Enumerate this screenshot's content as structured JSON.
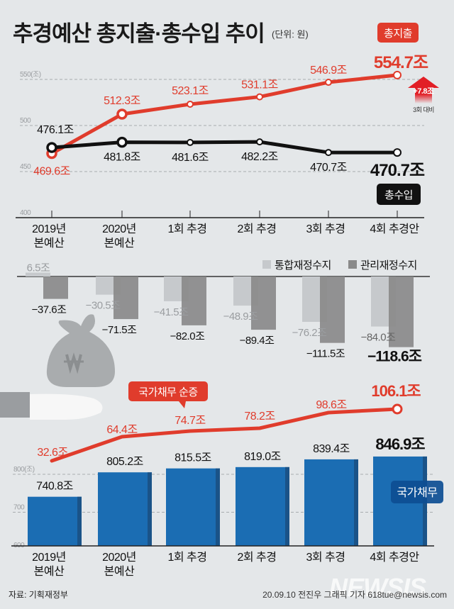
{
  "title": "추경예산 총지출·총수입 추이",
  "unit": "(단위: 원)",
  "categories": [
    "2019년\n본예산",
    "2020년\n본예산",
    "1회 추경",
    "2회 추경",
    "3회 추경",
    "4회 추경안"
  ],
  "colors": {
    "expenditure": "#e03c2c",
    "revenue": "#111111",
    "integrated_balance": "#c6c9cc",
    "managed_balance": "#8a8a8a",
    "debt_bar": "#1b6db3",
    "debt_increase": "#e03c2c",
    "background": "#e4e7e9"
  },
  "top_chart": {
    "y_axis_label": "550(조)",
    "y_ticks": [
      "550(조)",
      "500",
      "450",
      "400"
    ],
    "expenditure_badge": "총지출",
    "revenue_badge": "총수입",
    "expenditure_labels": [
      "469.6조",
      "512.3조",
      "523.1조",
      "531.1조",
      "546.9조",
      "554.7조"
    ],
    "revenue_labels": [
      "476.1조",
      "481.8조",
      "481.6조",
      "482.2조",
      "470.7조",
      "470.7조"
    ],
    "arrow_label": "+7.8조",
    "arrow_sub": "3회 대비"
  },
  "balance_chart": {
    "legend": [
      "통합재정수지",
      "관리재정수지"
    ],
    "integrated_labels": [
      "6.5조",
      "−30.5조",
      "−41.5조",
      "−48.9조",
      "−76.2조",
      "−84.0조"
    ],
    "managed_labels": [
      "−37.6조",
      "−71.5조",
      "−82.0조",
      "−89.4조",
      "−111.5조",
      "−118.6조"
    ]
  },
  "debt_chart": {
    "y_ticks": [
      "800(조)",
      "700",
      "600"
    ],
    "increase_badge": "국가채무 순증",
    "increase_labels": [
      "32.6조",
      "64.4조",
      "74.7조",
      "78.2조",
      "98.6조",
      "106.1조"
    ],
    "debt_labels": [
      "740.8조",
      "805.2조",
      "815.5조",
      "819.0조",
      "839.4조",
      "846.9조"
    ],
    "debt_badge": "국가채무"
  },
  "footer": {
    "source": "자료: 기획재정부",
    "credit": "20.09.10 전진우 그래픽 기자 618tue@newsis.com",
    "watermark": "NEWSIS"
  },
  "chart_data": [
    {
      "type": "line",
      "title": "추경예산 총지출·총수입 추이",
      "categories": [
        "2019년 본예산",
        "2020년 본예산",
        "1회 추경",
        "2회 추경",
        "3회 추경",
        "4회 추경안"
      ],
      "series": [
        {
          "name": "총지출",
          "values": [
            469.6,
            512.3,
            523.1,
            531.1,
            546.9,
            554.7
          ]
        },
        {
          "name": "총수입",
          "values": [
            476.1,
            481.8,
            481.6,
            482.2,
            470.7,
            470.7
          ]
        }
      ],
      "ylabel": "조 원",
      "ylim": [
        400,
        550
      ],
      "grid": true,
      "annotations": [
        "+7.8조 3회 대비"
      ]
    },
    {
      "type": "bar",
      "categories": [
        "2019년 본예산",
        "2020년 본예산",
        "1회 추경",
        "2회 추경",
        "3회 추경",
        "4회 추경안"
      ],
      "series": [
        {
          "name": "통합재정수지",
          "values": [
            6.5,
            -30.5,
            -41.5,
            -48.9,
            -76.2,
            -84.0
          ]
        },
        {
          "name": "관리재정수지",
          "values": [
            -37.6,
            -71.5,
            -82.0,
            -89.4,
            -111.5,
            -118.6
          ]
        }
      ],
      "ylabel": "조 원",
      "legend_position": "top-right"
    },
    {
      "type": "line",
      "name": "국가채무 순증",
      "categories": [
        "2019년 본예산",
        "2020년 본예산",
        "1회 추경",
        "2회 추경",
        "3회 추경",
        "4회 추경안"
      ],
      "values": [
        32.6,
        64.4,
        74.7,
        78.2,
        98.6,
        106.1
      ]
    },
    {
      "type": "bar",
      "name": "국가채무",
      "categories": [
        "2019년 본예산",
        "2020년 본예산",
        "1회 추경",
        "2회 추경",
        "3회 추경",
        "4회 추경안"
      ],
      "values": [
        740.8,
        805.2,
        815.5,
        819.0,
        839.4,
        846.9
      ],
      "ylabel": "조 원",
      "ylim": [
        600,
        800
      ],
      "grid": true
    }
  ]
}
